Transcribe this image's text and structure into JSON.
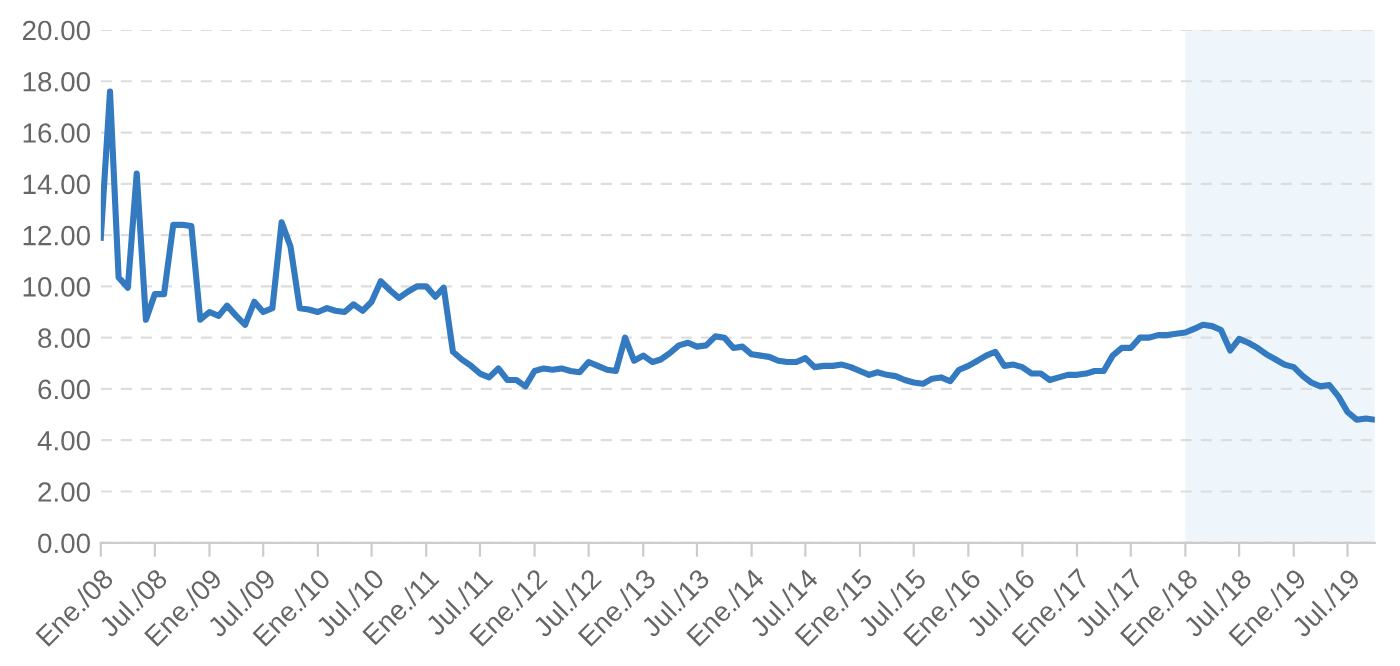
{
  "chart_data": {
    "type": "line",
    "x": [
      "2008-01",
      "2008-02",
      "2008-03",
      "2008-04",
      "2008-05",
      "2008-06",
      "2008-07",
      "2008-08",
      "2008-09",
      "2008-10",
      "2008-11",
      "2008-12",
      "2009-01",
      "2009-02",
      "2009-03",
      "2009-04",
      "2009-05",
      "2009-06",
      "2009-07",
      "2009-08",
      "2009-09",
      "2009-10",
      "2009-11",
      "2009-12",
      "2010-01",
      "2010-02",
      "2010-03",
      "2010-04",
      "2010-05",
      "2010-06",
      "2010-07",
      "2010-08",
      "2010-09",
      "2010-10",
      "2010-11",
      "2010-12",
      "2011-01",
      "2011-02",
      "2011-03",
      "2011-04",
      "2011-05",
      "2011-06",
      "2011-07",
      "2011-08",
      "2011-09",
      "2011-10",
      "2011-11",
      "2011-12",
      "2012-01",
      "2012-02",
      "2012-03",
      "2012-04",
      "2012-05",
      "2012-06",
      "2012-07",
      "2012-08",
      "2012-09",
      "2012-10",
      "2012-11",
      "2012-12",
      "2013-01",
      "2013-02",
      "2013-03",
      "2013-04",
      "2013-05",
      "2013-06",
      "2013-07",
      "2013-08",
      "2013-09",
      "2013-10",
      "2013-11",
      "2013-12",
      "2014-01",
      "2014-02",
      "2014-03",
      "2014-04",
      "2014-05",
      "2014-06",
      "2014-07",
      "2014-08",
      "2014-09",
      "2014-10",
      "2014-11",
      "2014-12",
      "2015-01",
      "2015-02",
      "2015-03",
      "2015-04",
      "2015-05",
      "2015-06",
      "2015-07",
      "2015-08",
      "2015-09",
      "2015-10",
      "2015-11",
      "2015-12",
      "2016-01",
      "2016-02",
      "2016-03",
      "2016-04",
      "2016-05",
      "2016-06",
      "2016-07",
      "2016-08",
      "2016-09",
      "2016-10",
      "2016-11",
      "2016-12",
      "2017-01",
      "2017-02",
      "2017-03",
      "2017-04",
      "2017-05",
      "2017-06",
      "2017-07",
      "2017-08",
      "2017-09",
      "2017-10",
      "2017-11",
      "2017-12",
      "2018-01",
      "2018-02",
      "2018-03",
      "2018-04",
      "2018-05",
      "2018-06",
      "2018-07",
      "2018-08",
      "2018-09",
      "2018-10",
      "2018-11",
      "2018-12",
      "2019-01",
      "2019-02",
      "2019-03",
      "2019-04",
      "2019-05",
      "2019-06",
      "2019-07",
      "2019-08",
      "2019-09",
      "2019-10"
    ],
    "series": [
      {
        "color": "#337ac0",
        "values": [
          11.9,
          17.6,
          10.35,
          9.95,
          14.4,
          8.7,
          9.7,
          9.7,
          12.4,
          12.4,
          12.35,
          8.7,
          9.0,
          8.85,
          9.25,
          8.85,
          8.5,
          9.4,
          9.0,
          9.15,
          12.5,
          11.55,
          9.15,
          9.1,
          9.0,
          9.15,
          9.05,
          9.0,
          9.3,
          9.05,
          9.4,
          10.2,
          9.85,
          9.55,
          9.8,
          10.0,
          10.0,
          9.6,
          9.95,
          7.45,
          7.15,
          6.9,
          6.6,
          6.45,
          6.8,
          6.35,
          6.35,
          6.1,
          6.7,
          6.8,
          6.75,
          6.8,
          6.7,
          6.65,
          7.05,
          6.9,
          6.75,
          6.7,
          8.0,
          7.1,
          7.3,
          7.05,
          7.15,
          7.4,
          7.7,
          7.8,
          7.65,
          7.7,
          8.05,
          8.0,
          7.6,
          7.65,
          7.35,
          7.3,
          7.25,
          7.1,
          7.05,
          7.05,
          7.2,
          6.85,
          6.9,
          6.9,
          6.95,
          6.85,
          6.7,
          6.55,
          6.65,
          6.55,
          6.5,
          6.35,
          6.25,
          6.2,
          6.4,
          6.45,
          6.3,
          6.75,
          6.9,
          7.1,
          7.3,
          7.45,
          6.9,
          6.95,
          6.85,
          6.6,
          6.6,
          6.35,
          6.45,
          6.55,
          6.55,
          6.6,
          6.7,
          6.7,
          7.3,
          7.6,
          7.6,
          8.0,
          8.0,
          8.1,
          8.1,
          8.15,
          8.2,
          8.35,
          8.5,
          8.45,
          8.3,
          7.5,
          7.95,
          7.8,
          7.6,
          7.35,
          7.15,
          6.95,
          6.85,
          6.5,
          6.25,
          6.1,
          6.15,
          5.7,
          5.1,
          4.8,
          4.85,
          4.8
        ]
      }
    ],
    "xlim": [
      "2008-01",
      "2019-10"
    ],
    "xticks": [
      {
        "value": "2008-01",
        "label": "Ene./08"
      },
      {
        "value": "2008-07",
        "label": "Jul./08"
      },
      {
        "value": "2009-01",
        "label": "Ene./09"
      },
      {
        "value": "2009-07",
        "label": "Jul./09"
      },
      {
        "value": "2010-01",
        "label": "Ene./10"
      },
      {
        "value": "2010-07",
        "label": "Jul./10"
      },
      {
        "value": "2011-01",
        "label": "Ene./11"
      },
      {
        "value": "2011-07",
        "label": "Jul./11"
      },
      {
        "value": "2012-01",
        "label": "Ene./12"
      },
      {
        "value": "2012-07",
        "label": "Jul./12"
      },
      {
        "value": "2013-01",
        "label": "Ene./13"
      },
      {
        "value": "2013-07",
        "label": "Jul./13"
      },
      {
        "value": "2014-01",
        "label": "Ene./14"
      },
      {
        "value": "2014-07",
        "label": "Jul./14"
      },
      {
        "value": "2015-01",
        "label": "Ene./15"
      },
      {
        "value": "2015-07",
        "label": "Jul./15"
      },
      {
        "value": "2016-01",
        "label": "Ene./16"
      },
      {
        "value": "2016-07",
        "label": "Jul./16"
      },
      {
        "value": "2017-01",
        "label": "Ene./17"
      },
      {
        "value": "2017-07",
        "label": "Jul./17"
      },
      {
        "value": "2018-01",
        "label": "Ene./18"
      },
      {
        "value": "2018-07",
        "label": "Jul./18"
      },
      {
        "value": "2019-01",
        "label": "Ene./19"
      },
      {
        "value": "2019-07",
        "label": "Jul./19"
      }
    ],
    "ylim": [
      0,
      20
    ],
    "yticks": [
      {
        "value": 0,
        "label": "0.00"
      },
      {
        "value": 2,
        "label": "2.00"
      },
      {
        "value": 4,
        "label": "4.00"
      },
      {
        "value": 6,
        "label": "6.00"
      },
      {
        "value": 8,
        "label": "8.00"
      },
      {
        "value": 10,
        "label": "10.00"
      },
      {
        "value": 12,
        "label": "12.00"
      },
      {
        "value": 14,
        "label": "14.00"
      },
      {
        "value": 16,
        "label": "16.00"
      },
      {
        "value": 18,
        "label": "18.00"
      },
      {
        "value": 20,
        "label": "20.00"
      }
    ],
    "grid": "y",
    "line_style": "solid",
    "bands": [
      {
        "axis": "x",
        "from": "2018-01",
        "to": "2019-10",
        "color": "#eef5fb"
      }
    ]
  }
}
